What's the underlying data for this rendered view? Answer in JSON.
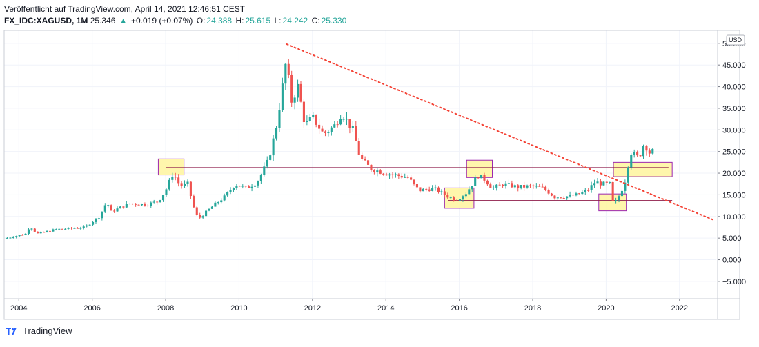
{
  "header": {
    "published": "Veröffentlicht auf TradingView.com, April 14, 2021 12:46:51 CEST",
    "symbol": "FX_IDC:XAGUSD, 1M",
    "last": "25.346",
    "arrow": "▲",
    "change": "+0.019 (+0.07%)",
    "o_label": "O:",
    "o_value": "24.388",
    "h_label": "H:",
    "h_value": "25.615",
    "l_label": "L:",
    "l_value": "24.242",
    "c_label": "C:",
    "c_value": "25.330"
  },
  "footer": {
    "brand": "TradingView"
  },
  "colors": {
    "up": "#26a69a",
    "down": "#ef5350",
    "grid": "#f0f3fa",
    "box_fill": "#fff59d",
    "box_stroke": "#9c27b0",
    "trend": "#f44336",
    "hline": "#8e1b4a"
  },
  "chart_data": {
    "type": "candlestick",
    "title": "FX_IDC:XAGUSD, 1M",
    "currency_label": "USD",
    "x_range": [
      2003.6,
      2023.0
    ],
    "y_range": [
      -9.0,
      53.0
    ],
    "x_ticks": [
      2004,
      2006,
      2008,
      2010,
      2012,
      2014,
      2016,
      2018,
      2020,
      2022
    ],
    "y_ticks": [
      -5,
      0,
      5,
      10,
      15,
      20,
      25,
      30,
      35,
      40,
      45,
      50
    ],
    "y_tick_labels": [
      "−5.000",
      "0.000",
      "5.000",
      "10.000",
      "15.000",
      "20.000",
      "25.000",
      "30.000",
      "35.000",
      "40.000",
      "45.000",
      "50.000"
    ],
    "price_path": [
      [
        2003.6,
        4.9
      ],
      [
        2004.2,
        6.0
      ],
      [
        2004.3,
        7.8
      ],
      [
        2004.5,
        6.0
      ],
      [
        2005.0,
        7.0
      ],
      [
        2005.8,
        7.5
      ],
      [
        2006.2,
        10.0
      ],
      [
        2006.4,
        13.5
      ],
      [
        2006.5,
        11.0
      ],
      [
        2007.0,
        13.0
      ],
      [
        2007.5,
        12.8
      ],
      [
        2007.8,
        13.5
      ],
      [
        2008.0,
        16.0
      ],
      [
        2008.2,
        20.0
      ],
      [
        2008.4,
        17.0
      ],
      [
        2008.6,
        17.5
      ],
      [
        2008.8,
        11.0
      ],
      [
        2008.9,
        9.5
      ],
      [
        2009.3,
        12.5
      ],
      [
        2009.6,
        14.5
      ],
      [
        2009.9,
        17.5
      ],
      [
        2010.2,
        16.5
      ],
      [
        2010.5,
        18.0
      ],
      [
        2010.8,
        23.0
      ],
      [
        2011.0,
        30.0
      ],
      [
        2011.15,
        38.0
      ],
      [
        2011.3,
        47.0
      ],
      [
        2011.4,
        36.0
      ],
      [
        2011.6,
        40.0
      ],
      [
        2011.8,
        31.0
      ],
      [
        2012.0,
        33.0
      ],
      [
        2012.3,
        29.0
      ],
      [
        2012.6,
        31.0
      ],
      [
        2012.8,
        34.0
      ],
      [
        2013.1,
        30.0
      ],
      [
        2013.3,
        23.5
      ],
      [
        2013.6,
        21.0
      ],
      [
        2014.0,
        20.0
      ],
      [
        2014.3,
        19.5
      ],
      [
        2014.6,
        19.0
      ],
      [
        2014.9,
        16.0
      ],
      [
        2015.3,
        16.5
      ],
      [
        2015.6,
        15.0
      ],
      [
        2015.9,
        13.8
      ],
      [
        2016.2,
        15.5
      ],
      [
        2016.5,
        19.5
      ],
      [
        2016.7,
        18.5
      ],
      [
        2016.9,
        16.5
      ],
      [
        2017.2,
        17.5
      ],
      [
        2017.6,
        16.8
      ],
      [
        2018.0,
        17.0
      ],
      [
        2018.3,
        16.5
      ],
      [
        2018.6,
        14.5
      ],
      [
        2018.9,
        14.6
      ],
      [
        2019.2,
        15.0
      ],
      [
        2019.5,
        16.0
      ],
      [
        2019.7,
        18.0
      ],
      [
        2019.9,
        17.5
      ],
      [
        2020.1,
        17.5
      ],
      [
        2020.2,
        12.5
      ],
      [
        2020.4,
        15.5
      ],
      [
        2020.55,
        19.0
      ],
      [
        2020.65,
        25.0
      ],
      [
        2020.8,
        24.0
      ],
      [
        2020.9,
        23.5
      ],
      [
        2021.0,
        26.5
      ],
      [
        2021.1,
        26.0
      ],
      [
        2021.2,
        24.5
      ],
      [
        2021.3,
        25.3
      ]
    ],
    "annotations": {
      "trendline": {
        "from": [
          2011.3,
          49.8
        ],
        "to": [
          2022.9,
          9.3
        ],
        "style": "dotted"
      },
      "hlines": [
        {
          "from": 2008.0,
          "to": 2021.7,
          "value": 21.3
        },
        {
          "from": 2015.7,
          "to": 2021.8,
          "value": 13.7
        }
      ],
      "boxes": [
        {
          "x": [
            2007.8,
            2008.5
          ],
          "y": [
            19.6,
            23.3
          ]
        },
        {
          "x": [
            2015.6,
            2016.4
          ],
          "y": [
            11.9,
            16.6
          ]
        },
        {
          "x": [
            2016.2,
            2016.9
          ],
          "y": [
            19.0,
            23.0
          ]
        },
        {
          "x": [
            2019.8,
            2020.55
          ],
          "y": [
            11.3,
            15.2
          ]
        },
        {
          "x": [
            2020.2,
            2021.8
          ],
          "y": [
            19.2,
            22.5
          ]
        }
      ]
    }
  }
}
